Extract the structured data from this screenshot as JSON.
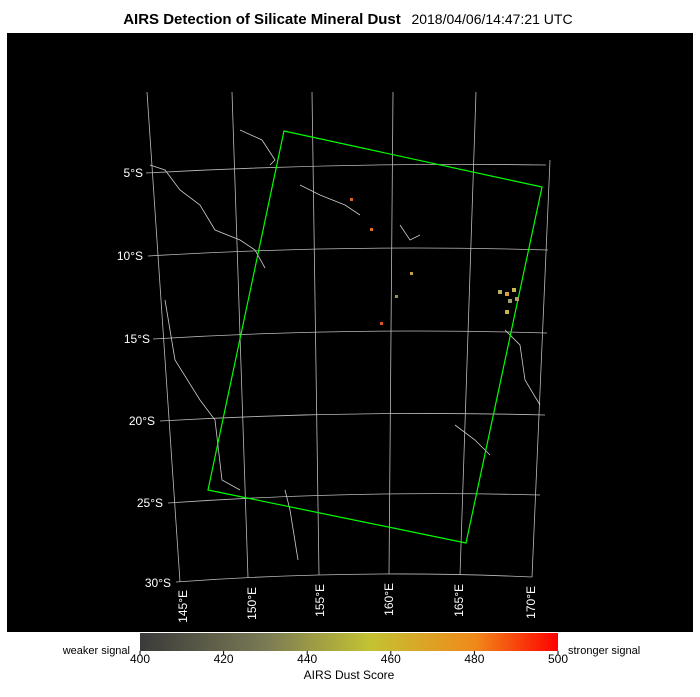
{
  "title": "AIRS Detection of Silicate Mineral Dust",
  "timestamp": "2018/04/06/14:47:21 UTC",
  "map": {
    "lat_labels": [
      "5°S",
      "10°S",
      "15°S",
      "20°S",
      "25°S",
      "30°S"
    ],
    "lon_labels": [
      "145°E",
      "150°E",
      "155°E",
      "160°E",
      "165°E",
      "170°E"
    ]
  },
  "colorbar": {
    "label": "AIRS Dust Score",
    "low_label": "weaker signal",
    "high_label": "stronger signal",
    "lim": [
      400,
      500
    ],
    "ticks": [
      400,
      420,
      440,
      460,
      480,
      500
    ]
  }
}
